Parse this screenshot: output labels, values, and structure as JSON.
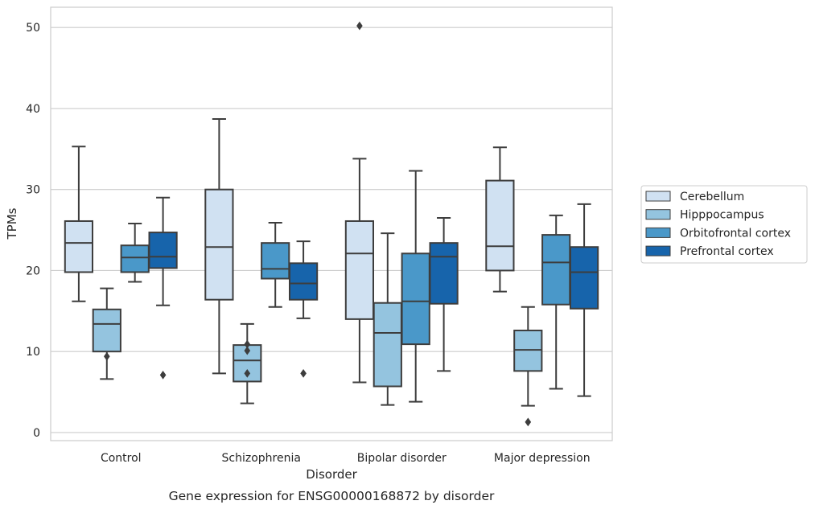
{
  "chart_data": {
    "type": "box",
    "title": "Gene expression for ENSG00000168872 by disorder",
    "xlabel": "Disorder",
    "ylabel": "TPMs",
    "ylim": [
      -1,
      52.5
    ],
    "yticks": [
      0,
      10,
      20,
      30,
      40,
      50
    ],
    "grid": true,
    "legend_position": "right",
    "categories": [
      "Control",
      "Schizophrenia",
      "Bipolar disorder",
      "Major depression"
    ],
    "series": [
      {
        "name": "Cerebellum",
        "color": "#d0e1f2",
        "boxes": [
          {
            "whislo": 16.2,
            "q1": 19.8,
            "med": 23.4,
            "q3": 26.1,
            "whishi": 35.3,
            "fliers": []
          },
          {
            "whislo": 7.3,
            "q1": 16.4,
            "med": 22.9,
            "q3": 30.0,
            "whishi": 38.7,
            "fliers": []
          },
          {
            "whislo": 6.2,
            "q1": 14.0,
            "med": 22.1,
            "q3": 26.1,
            "whishi": 33.8,
            "fliers": [
              50.2
            ]
          },
          {
            "whislo": 17.4,
            "q1": 20.0,
            "med": 23.0,
            "q3": 31.1,
            "whishi": 35.2,
            "fliers": []
          }
        ]
      },
      {
        "name": "Hipppocampus",
        "color": "#94c4df",
        "boxes": [
          {
            "whislo": 6.6,
            "q1": 10.0,
            "med": 13.4,
            "q3": 15.2,
            "whishi": 17.8,
            "fliers": [
              9.4
            ]
          },
          {
            "whislo": 3.6,
            "q1": 6.3,
            "med": 8.9,
            "q3": 10.8,
            "whishi": 13.4,
            "fliers": [
              10.9,
              10.1,
              7.3
            ]
          },
          {
            "whislo": 3.4,
            "q1": 5.7,
            "med": 12.3,
            "q3": 16.0,
            "whishi": 24.6,
            "fliers": []
          },
          {
            "whislo": 3.3,
            "q1": 7.6,
            "med": 10.2,
            "q3": 12.6,
            "whishi": 15.5,
            "fliers": [
              1.3
            ]
          }
        ]
      },
      {
        "name": "Orbitofrontal cortex",
        "color": "#4a98c9",
        "boxes": [
          {
            "whislo": 18.6,
            "q1": 19.8,
            "med": 21.6,
            "q3": 23.1,
            "whishi": 25.8,
            "fliers": []
          },
          {
            "whislo": 15.5,
            "q1": 19.0,
            "med": 20.2,
            "q3": 23.4,
            "whishi": 25.9,
            "fliers": []
          },
          {
            "whislo": 3.8,
            "q1": 10.9,
            "med": 16.2,
            "q3": 22.1,
            "whishi": 32.3,
            "fliers": []
          },
          {
            "whislo": 5.4,
            "q1": 15.8,
            "med": 21.0,
            "q3": 24.4,
            "whishi": 26.8,
            "fliers": []
          }
        ]
      },
      {
        "name": "Prefrontal cortex",
        "color": "#1764ab",
        "boxes": [
          {
            "whislo": 15.7,
            "q1": 20.3,
            "med": 21.7,
            "q3": 24.7,
            "whishi": 29.0,
            "fliers": [
              7.1
            ]
          },
          {
            "whislo": 14.1,
            "q1": 16.4,
            "med": 18.4,
            "q3": 20.9,
            "whishi": 23.6,
            "fliers": [
              7.3
            ]
          },
          {
            "whislo": 7.6,
            "q1": 15.9,
            "med": 21.7,
            "q3": 23.4,
            "whishi": 26.5,
            "fliers": []
          },
          {
            "whislo": 4.5,
            "q1": 15.3,
            "med": 19.8,
            "q3": 22.9,
            "whishi": 28.2,
            "fliers": []
          }
        ]
      }
    ]
  }
}
